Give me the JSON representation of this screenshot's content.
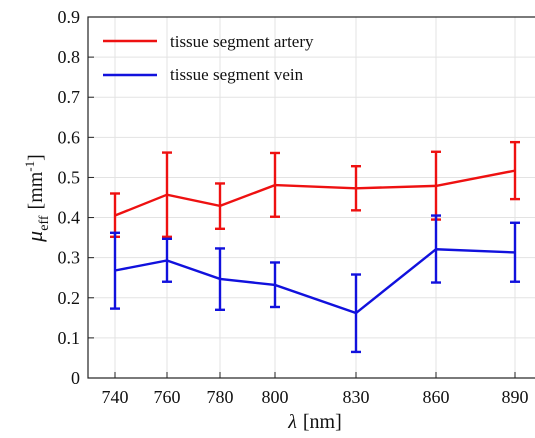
{
  "chart_data": {
    "type": "line",
    "x_categories": [
      "740",
      "760",
      "780",
      "800",
      "830",
      "860",
      "890"
    ],
    "xlabel": {
      "symbol": "λ",
      "unit": "[nm]"
    },
    "ylabel": {
      "symbol": "μ",
      "subscript": "eff",
      "unit_prefix": "[mm",
      "unit_sup": "-1",
      "unit_suffix": "]"
    },
    "ylim": [
      0,
      0.9
    ],
    "yticks": [
      "0",
      "0.1",
      "0.2",
      "0.3",
      "0.4",
      "0.5",
      "0.6",
      "0.7",
      "0.8",
      "0.9"
    ],
    "grid": true,
    "legend_position": "top-left",
    "series": [
      {
        "name": "tissue segment artery",
        "color": "#ee1111",
        "values": [
          0.405,
          0.457,
          0.429,
          0.481,
          0.473,
          0.479,
          0.517
        ],
        "err_low": [
          0.352,
          0.352,
          0.372,
          0.402,
          0.418,
          0.395,
          0.446
        ],
        "err_high": [
          0.46,
          0.562,
          0.485,
          0.561,
          0.528,
          0.564,
          0.588
        ]
      },
      {
        "name": "tissue segment vein",
        "color": "#1111dd",
        "values": [
          0.268,
          0.293,
          0.247,
          0.232,
          0.162,
          0.321,
          0.313
        ],
        "err_low": [
          0.173,
          0.24,
          0.17,
          0.177,
          0.065,
          0.238,
          0.24
        ],
        "err_high": [
          0.362,
          0.347,
          0.323,
          0.288,
          0.258,
          0.405,
          0.387
        ]
      }
    ]
  }
}
